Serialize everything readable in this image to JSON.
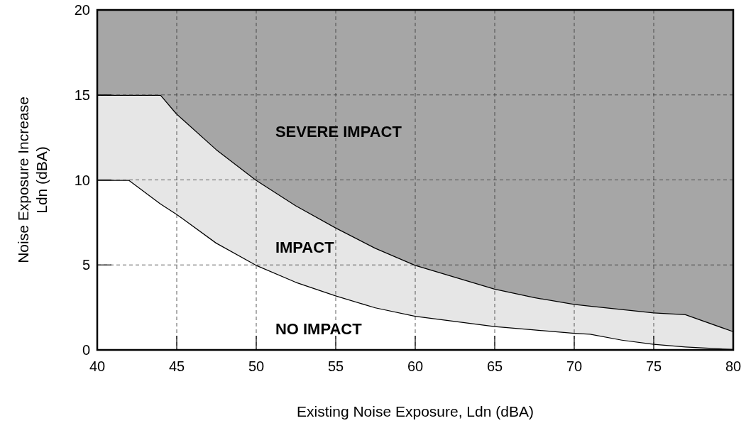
{
  "chart_data": {
    "type": "area",
    "stacked": true,
    "xlabel": "Existing Noise Exposure, Ldn (dBA)",
    "ylabel": "Noise Exposure Increase\nLdn (dBA)",
    "x": [
      40,
      42,
      44,
      45,
      47.5,
      50,
      52.5,
      55,
      57.5,
      60,
      62.5,
      65,
      67.5,
      70,
      71,
      73,
      75,
      77,
      80
    ],
    "series": [
      {
        "color": "#ffffff",
        "values": [
          10,
          10,
          8.6,
          8.0,
          6.3,
          5.0,
          4.0,
          3.2,
          2.5,
          2.0,
          1.7,
          1.4,
          1.2,
          1.0,
          0.95,
          0.6,
          0.35,
          0.2,
          0.05
        ]
      },
      {
        "color": "#e6e6e6",
        "values": [
          5,
          5,
          6.4,
          5.9,
          5.5,
          5,
          4.5,
          4.0,
          3.5,
          3.0,
          2.6,
          2.2,
          1.9,
          1.7,
          1.65,
          1.8,
          1.85,
          1.9,
          1.05
        ]
      },
      {
        "color": "#a6a6a6",
        "values": [
          5,
          5,
          5,
          6.1,
          8.2,
          10,
          11.5,
          12.8,
          14,
          15,
          15.7,
          16.4,
          16.9,
          17.3,
          17.4,
          17.6,
          17.8,
          17.9,
          18.9
        ]
      }
    ],
    "xlim": [
      40,
      80
    ],
    "ylim": [
      0,
      20
    ],
    "xticks": [
      40,
      45,
      50,
      55,
      60,
      65,
      70,
      75,
      80
    ],
    "yticks": [
      0,
      5,
      10,
      15,
      20
    ],
    "grid": true,
    "line_style": "dashed",
    "annotations": [
      "SEVERE IMPACT",
      "IMPACT",
      "NO IMPACT"
    ]
  }
}
